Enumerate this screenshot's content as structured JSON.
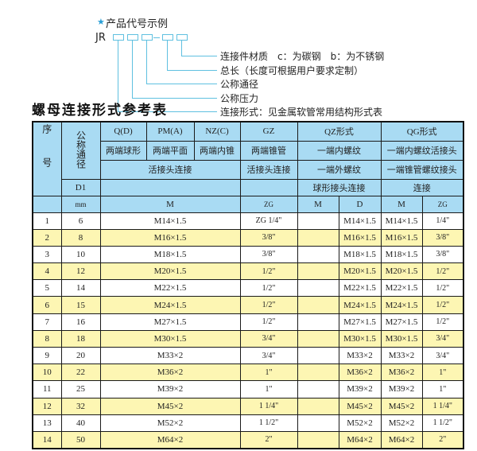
{
  "code_example": {
    "star_icon": "star",
    "heading": "产品代号示例",
    "prefix": "JR",
    "labels": [
      "连接件材质　c：为碳钢　b：为不锈钢",
      "总长（长度可根据用户要求定制）",
      "公称通径",
      "公称压力",
      "连接形式：见金属软管常用结构形式表"
    ]
  },
  "table_title": "螺母连接形式参考表",
  "header": {
    "seq": "序号",
    "dn": "公称通径",
    "d1": "D1",
    "mm": "mm",
    "q": "Q(D)",
    "pm": "PM(A)",
    "nz": "NZ(C)",
    "gz": "GZ",
    "qz": "QZ形式",
    "qg": "QG形式",
    "q2": "两端球形",
    "pm2": "两端平面",
    "nz2": "两端内锥",
    "gz2": "两端锥管",
    "qz2": "一端内螺纹",
    "qg2": "一端内螺纹活接头",
    "qpn3": "活接头连接",
    "gz3": "活接头连接",
    "qz3": "一端外螺纹",
    "qg3": "一端锥管螺纹接头",
    "qz4": "球形接头连接",
    "qg4": "连接",
    "m": "M",
    "zg": "ZG",
    "qzm": "M",
    "qzd": "D",
    "qgm": "M",
    "qgzg": "ZG"
  },
  "rows": [
    {
      "n": "1",
      "dn": "6",
      "m": "M14×1.5",
      "zg": "ZG 1/4\"",
      "qzd": "M14×1.5",
      "qgm": "M14×1.5",
      "qgzg": "1/4\""
    },
    {
      "n": "2",
      "dn": "8",
      "m": "M16×1.5",
      "zg": "3/8\"",
      "qzd": "M16×1.5",
      "qgm": "M16×1.5",
      "qgzg": "3/8\""
    },
    {
      "n": "3",
      "dn": "10",
      "m": "M18×1.5",
      "zg": "3/8\"",
      "qzd": "M18×1.5",
      "qgm": "M18×1.5",
      "qgzg": "3/8\""
    },
    {
      "n": "4",
      "dn": "12",
      "m": "M20×1.5",
      "zg": "1/2\"",
      "qzd": "M20×1.5",
      "qgm": "M20×1.5",
      "qgzg": "1/2\""
    },
    {
      "n": "5",
      "dn": "14",
      "m": "M22×1.5",
      "zg": "1/2\"",
      "qzd": "M22×1.5",
      "qgm": "M22×1.5",
      "qgzg": "1/2\""
    },
    {
      "n": "6",
      "dn": "15",
      "m": "M24×1.5",
      "zg": "1/2\"",
      "qzd": "M24×1.5",
      "qgm": "M24×1.5",
      "qgzg": "1/2\""
    },
    {
      "n": "7",
      "dn": "16",
      "m": "M27×1.5",
      "zg": "1/2\"",
      "qzd": "M27×1.5",
      "qgm": "M27×1.5",
      "qgzg": "1/2\""
    },
    {
      "n": "8",
      "dn": "18",
      "m": "M30×1.5",
      "zg": "3/4\"",
      "qzd": "M30×1.5",
      "qgm": "M30×1.5",
      "qgzg": "3/4\""
    },
    {
      "n": "9",
      "dn": "20",
      "m": "M33×2",
      "zg": "3/4\"",
      "qzd": "M33×2",
      "qgm": "M33×2",
      "qgzg": "3/4\""
    },
    {
      "n": "10",
      "dn": "22",
      "m": "M36×2",
      "zg": "1\"",
      "qzd": "M36×2",
      "qgm": "M36×2",
      "qgzg": "1\""
    },
    {
      "n": "11",
      "dn": "25",
      "m": "M39×2",
      "zg": "1\"",
      "qzd": "M39×2",
      "qgm": "M39×2",
      "qgzg": "1\""
    },
    {
      "n": "12",
      "dn": "32",
      "m": "M45×2",
      "zg": "1 1/4\"",
      "qzd": "M45×2",
      "qgm": "M45×2",
      "qgzg": "1 1/4\""
    },
    {
      "n": "13",
      "dn": "40",
      "m": "M52×2",
      "zg": "1 1/2\"",
      "qzd": "M52×2",
      "qgm": "M52×2",
      "qgzg": "1 1/2\""
    },
    {
      "n": "14",
      "dn": "50",
      "m": "M64×2",
      "zg": "2\"",
      "qzd": "M64×2",
      "qgm": "M64×2",
      "qgzg": "2\""
    }
  ],
  "colors": {
    "header": "#a9dbf3",
    "stripe": "#fdf6b3",
    "line": "#5fc0e0"
  }
}
